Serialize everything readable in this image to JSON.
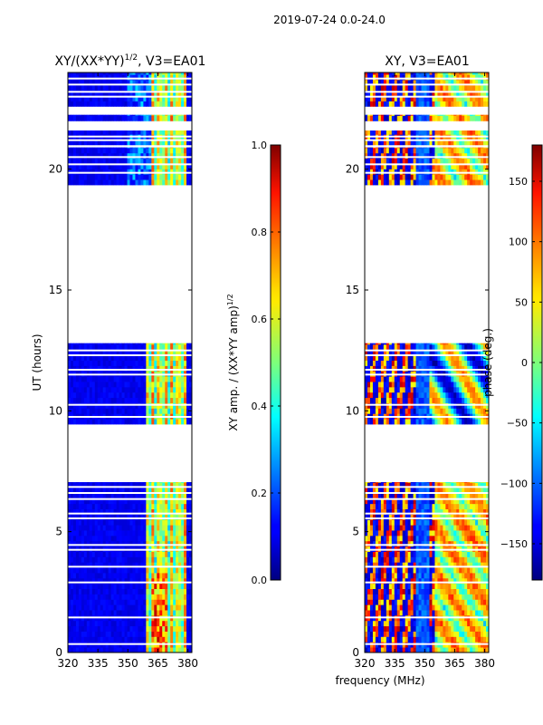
{
  "page": {
    "suptitle": "2019-07-24 0.0-24.0",
    "xlabel": "frequency (MHz)"
  },
  "chart_data": [
    {
      "type": "heatmap",
      "id": "amp",
      "title": "XY/(XX*YY)",
      "title_exp": "1/2",
      "title_suffix": ", V3=EA01",
      "xlabel": "frequency (MHz)",
      "ylabel": "UT (hours)",
      "xlim": [
        320,
        382
      ],
      "ylim": [
        0,
        24
      ],
      "xticks": [
        320,
        335,
        350,
        365,
        380
      ],
      "yticks": [
        0,
        5,
        10,
        15,
        20
      ],
      "colormap": "jet",
      "colorbar": {
        "label": "XY amp. / (XX*YY amp)",
        "label_exp": "1/2",
        "range": [
          0.0,
          1.0
        ],
        "ticks": [
          "0.0",
          "0.2",
          "0.4",
          "0.6",
          "0.8",
          "1.0"
        ],
        "tick_values": [
          0.0,
          0.2,
          0.4,
          0.6,
          0.8,
          1.0
        ]
      },
      "data_time_ranges_hours": [
        [
          0.0,
          7.05
        ],
        [
          9.45,
          12.8
        ],
        [
          19.35,
          20.9
        ],
        [
          21.0,
          21.6
        ],
        [
          22.0,
          22.25
        ],
        [
          22.6,
          24.0
        ]
      ],
      "gap_lines_hours": [
        0.35,
        1.45,
        2.9,
        3.55,
        4.25,
        4.45,
        5.55,
        5.75,
        6.35,
        6.6,
        6.85,
        9.75,
        10.25,
        11.5,
        11.7,
        12.3,
        12.5,
        19.85,
        20.2,
        20.5,
        20.95,
        21.2,
        21.35,
        23.0,
        23.2,
        23.5,
        23.75
      ]
    },
    {
      "type": "heatmap",
      "id": "phase",
      "title": "XY, V3=EA01",
      "xlabel": "frequency (MHz)",
      "ylabel": "",
      "xlim": [
        320,
        382
      ],
      "ylim": [
        0,
        24
      ],
      "xticks": [
        320,
        335,
        350,
        365,
        380
      ],
      "yticks": [
        0,
        5,
        10,
        15,
        20
      ],
      "colormap": "jet",
      "colorbar": {
        "label": "phase (deg.)",
        "range": [
          -180,
          180
        ],
        "ticks": [
          "−150",
          "−100",
          "−50",
          "0",
          "50",
          "100",
          "150"
        ],
        "tick_values": [
          -150,
          -100,
          -50,
          0,
          50,
          100,
          150
        ]
      },
      "data_time_ranges_hours": [
        [
          0.0,
          7.05
        ],
        [
          9.45,
          12.8
        ],
        [
          19.35,
          20.9
        ],
        [
          21.0,
          21.6
        ],
        [
          22.0,
          22.25
        ],
        [
          22.6,
          24.0
        ]
      ],
      "gap_lines_hours": [
        0.35,
        1.45,
        2.9,
        3.55,
        4.25,
        4.45,
        5.55,
        5.75,
        6.35,
        6.6,
        6.85,
        9.75,
        10.25,
        11.5,
        11.7,
        12.3,
        12.5,
        19.85,
        20.2,
        20.5,
        20.95,
        21.2,
        21.35,
        23.0,
        23.2,
        23.5,
        23.75
      ]
    }
  ]
}
